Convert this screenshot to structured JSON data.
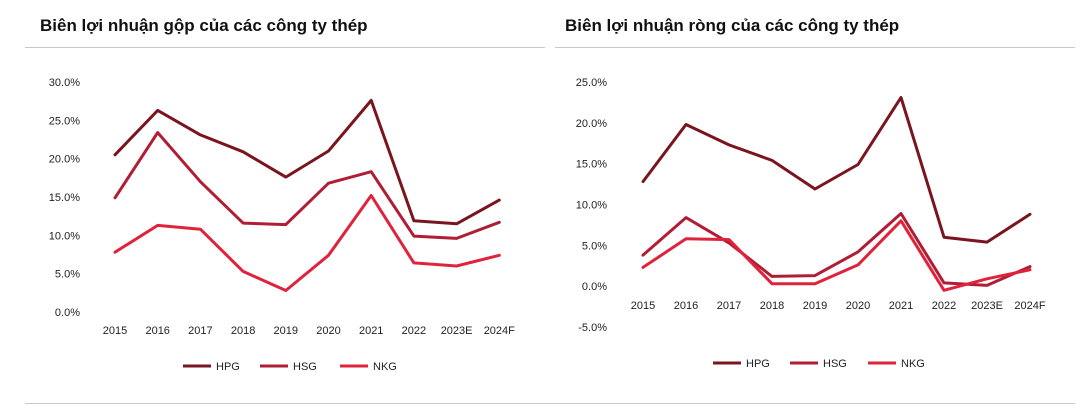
{
  "chart_data": [
    {
      "type": "line",
      "title": "Biên lợi nhuận gộp của các công ty thép",
      "categories": [
        "2015",
        "2016",
        "2017",
        "2018",
        "2019",
        "2020",
        "2021",
        "2022",
        "2023E",
        "2024F"
      ],
      "y_ticks": [
        "0.0%",
        "5.0%",
        "10.0%",
        "15.0%",
        "20.0%",
        "25.0%",
        "30.0%"
      ],
      "ylim": [
        0,
        30
      ],
      "grid": false,
      "legend_position": "bottom",
      "series": [
        {
          "name": "HPG",
          "color": "#7a1520",
          "values": [
            20.5,
            26.3,
            23.1,
            20.9,
            17.6,
            21.0,
            27.6,
            11.9,
            11.5,
            14.6
          ]
        },
        {
          "name": "HSG",
          "color": "#b01e35",
          "values": [
            14.9,
            23.4,
            17.0,
            11.6,
            11.4,
            16.8,
            18.3,
            9.9,
            9.6,
            11.7
          ]
        },
        {
          "name": "NKG",
          "color": "#e0233d",
          "values": [
            7.8,
            11.3,
            10.8,
            5.3,
            2.8,
            7.4,
            15.2,
            6.4,
            6.0,
            7.4
          ]
        }
      ]
    },
    {
      "type": "line",
      "title": "Biên lợi nhuận ròng của các công ty thép",
      "categories": [
        "2015",
        "2016",
        "2017",
        "2018",
        "2019",
        "2020",
        "2021",
        "2022",
        "2023E",
        "2024F"
      ],
      "y_ticks": [
        "-5.0%",
        "0.0%",
        "5.0%",
        "10.0%",
        "15.0%",
        "20.0%",
        "25.0%"
      ],
      "ylim": [
        -5,
        25
      ],
      "grid": false,
      "legend_position": "bottom",
      "series": [
        {
          "name": "HPG",
          "color": "#7a1520",
          "values": [
            12.8,
            19.8,
            17.3,
            15.4,
            11.9,
            14.9,
            23.1,
            6.0,
            5.4,
            8.8
          ]
        },
        {
          "name": "HSG",
          "color": "#b01e35",
          "values": [
            3.8,
            8.4,
            5.3,
            1.2,
            1.3,
            4.2,
            8.9,
            0.4,
            0.1,
            2.4
          ]
        },
        {
          "name": "NKG",
          "color": "#e0233d",
          "values": [
            2.3,
            5.8,
            5.7,
            0.3,
            0.3,
            2.6,
            8.0,
            -0.5,
            0.9,
            2.0
          ]
        }
      ]
    }
  ]
}
